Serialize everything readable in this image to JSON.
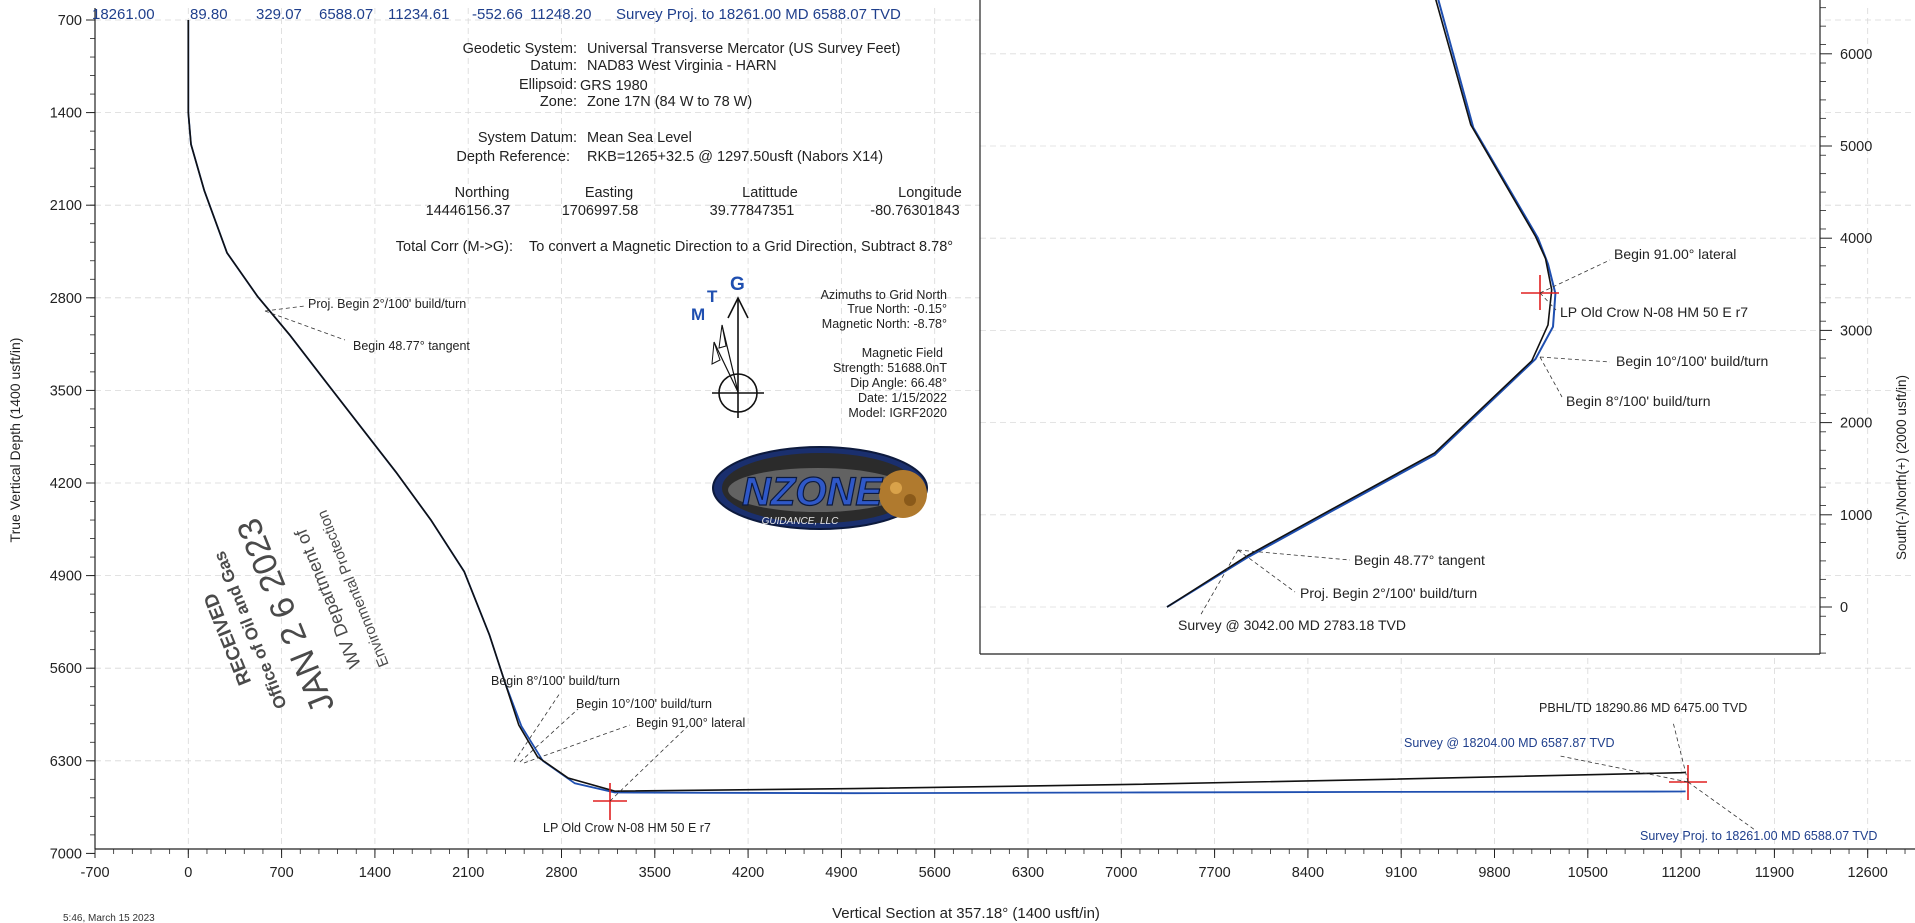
{
  "header_row": {
    "values": [
      "18261.00",
      "89.80",
      "329.07",
      "6588.07",
      "11234.61",
      "-552.66",
      "11248.20"
    ],
    "label": "Survey Proj. to 18261.00 MD 6588.07 TVD"
  },
  "geodetic": {
    "lines": [
      {
        "key": "Geodetic System:",
        "val": "Universal Transverse Mercator (US Survey Feet)"
      },
      {
        "key": "Datum:",
        "val": "NAD83 West Virginia - HARN"
      },
      {
        "key": "Ellipsoid:",
        "val": "GRS 1980"
      },
      {
        "key": "Zone:",
        "val": "Zone 17N (84 W to 78 W)"
      }
    ],
    "system_datum_key": "System Datum:",
    "system_datum_val": "Mean Sea Level",
    "depth_ref_key": "Depth Reference:",
    "depth_ref_val": "RKB=1265+32.5 @ 1297.50usft (Nabors X14)",
    "coord_headers": [
      "Northing",
      "Easting",
      "Latittude",
      "Longitude"
    ],
    "coord_values": [
      "14446156.37",
      "1706997.58",
      "39.77847351",
      "-80.76301843"
    ],
    "total_corr_key": "Total Corr (M->G):",
    "total_corr_val": "To convert a Magnetic Direction to a Grid Direction, Subtract 8.78°"
  },
  "north_arrow": {
    "g": "G",
    "t": "T",
    "m": "M"
  },
  "azimuths": {
    "lines": [
      "Azimuths to Grid North",
      "True North: -0.15°",
      "Magnetic North: -8.78°"
    ]
  },
  "magnetic": {
    "lines": [
      "Magnetic Field",
      "Strength: 51688.0nT",
      "Dip Angle: 66.48°",
      "Date: 1/15/2022",
      "Model: IGRF2020"
    ]
  },
  "logo": {
    "name": "NZONE",
    "sub": "GUIDANCE, LLC"
  },
  "stamp": {
    "lines": [
      "RECEIVED",
      "Office of Oil and Gas",
      "JAN 2 6 2023",
      "WV Department of",
      "Environmental Protection"
    ]
  },
  "footer_time": "5:46, March 15 2023",
  "colors": {
    "plan": "#111111",
    "actual": "#1f4fb0",
    "marker": "#e02020",
    "label_blue": "#1f3f8c"
  },
  "chart_data": [
    {
      "type": "line",
      "xlabel": "Vertical Section at 357.18° (1400 usft/in)",
      "ylabel": "True Vertical Depth (1400 usft/in)",
      "xlim": [
        -700,
        12900
      ],
      "ylim": [
        7000,
        700
      ],
      "y_inverted": true,
      "x_ticks": [
        -700,
        0,
        700,
        1400,
        2100,
        2800,
        3500,
        4200,
        4900,
        5600,
        6300,
        7000,
        7700,
        8400,
        9100,
        9800,
        10500,
        11200,
        11900,
        12600
      ],
      "y_ticks": [
        700,
        1400,
        2100,
        2800,
        3500,
        4200,
        4900,
        5600,
        6300,
        7000
      ],
      "grid": true,
      "series": [
        {
          "x": [
            0,
            0,
            20,
            120,
            290,
            520,
            760,
            1020,
            1290,
            1560,
            1820,
            2070,
            2260,
            2380,
            2480,
            2620,
            2850,
            3200,
            5000,
            7000,
            9000,
            11200,
            11234
          ],
          "y": [
            700,
            1400,
            1640,
            1990,
            2460,
            2790,
            3080,
            3420,
            3770,
            4120,
            4480,
            4870,
            5350,
            5720,
            6030,
            6270,
            6430,
            6530,
            6510,
            6480,
            6440,
            6390,
            6388
          ]
        },
        {
          "x": [
            0,
            0,
            20,
            120,
            290,
            520,
            760,
            1020,
            1290,
            1560,
            1820,
            2070,
            2260,
            2380,
            2500,
            2660,
            2900,
            3200,
            5000,
            7000,
            9000,
            11200,
            11234
          ],
          "y": [
            700,
            1400,
            1640,
            1990,
            2460,
            2790,
            3080,
            3420,
            3770,
            4120,
            4480,
            4870,
            5350,
            5720,
            6040,
            6300,
            6470,
            6540,
            6545,
            6540,
            6535,
            6532,
            6531
          ]
        }
      ],
      "annotations": [
        {
          "text": "Proj. Begin 2°/100' build/turn",
          "color": "dark"
        },
        {
          "text": "Begin 48.77° tangent",
          "color": "dark"
        },
        {
          "text": "Begin 8°/100' build/turn",
          "color": "dark"
        },
        {
          "text": "Begin 10°/100' build/turn",
          "color": "dark"
        },
        {
          "text": "Begin 91.00° lateral",
          "color": "dark"
        },
        {
          "text": "LP Old Crow N-08 HM 50 E r7",
          "color": "dark"
        },
        {
          "text": "PBHL/TD 18290.86 MD 6475.00 TVD",
          "color": "dark"
        },
        {
          "text": "Survey @ 18204.00 MD 6587.87 TVD",
          "color": "blue"
        },
        {
          "text": "Survey Proj. to 18261.00 MD 6588.07 TVD",
          "color": "blue"
        }
      ]
    },
    {
      "type": "line",
      "ylabel": "South(-)/North(+) (2000 usft/in)",
      "ylim": [
        -500,
        6600
      ],
      "y_ticks": [
        0,
        1000,
        2000,
        3000,
        4000,
        5000,
        6000
      ],
      "series": [
        {
          "x": [
            0,
            650,
            1350,
            2150,
            2930,
            3060,
            3090,
            3040,
            2960,
            2440,
            2150
          ],
          "y": [
            0,
            560,
            1080,
            1670,
            2670,
            3060,
            3440,
            3780,
            4020,
            5230,
            6630
          ]
        },
        {
          "x": [
            0,
            650,
            1350,
            2150,
            2960,
            3100,
            3120,
            3060,
            2980,
            2460,
            2170
          ],
          "y": [
            0,
            540,
            1060,
            1650,
            2690,
            3040,
            3400,
            3720,
            4000,
            5200,
            6630
          ]
        }
      ],
      "annotations": [
        {
          "text": "Begin 91.00° lateral",
          "color": "dark"
        },
        {
          "text": "LP Old Crow N-08 HM 50 E r7",
          "color": "dark"
        },
        {
          "text": "Begin 10°/100' build/turn",
          "color": "dark"
        },
        {
          "text": "Begin 8°/100' build/turn",
          "color": "dark"
        },
        {
          "text": "Begin 48.77° tangent",
          "color": "dark"
        },
        {
          "text": "Proj. Begin 2°/100' build/turn",
          "color": "dark"
        },
        {
          "text": "Survey @ 3042.00 MD 2783.18 TVD",
          "color": "dark"
        }
      ]
    }
  ]
}
